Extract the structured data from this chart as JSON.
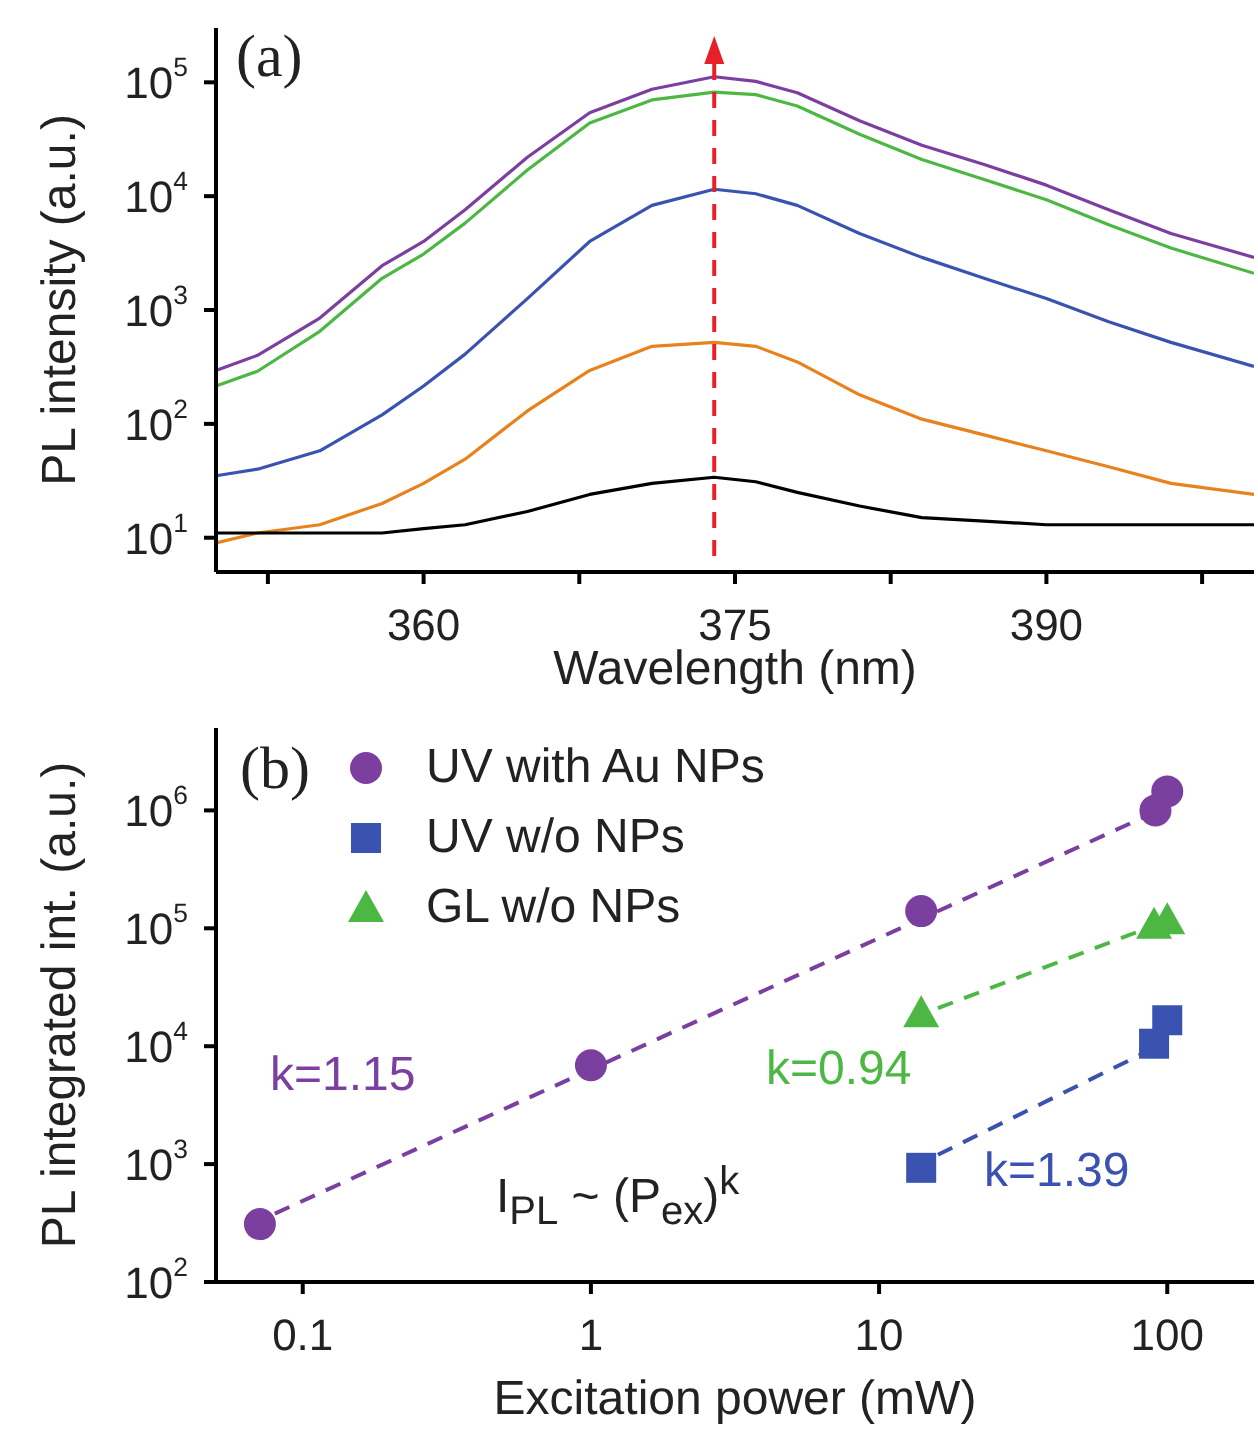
{
  "chart_data": [
    {
      "type": "line",
      "xlabel": "Wavelength (nm)",
      "ylabel": "PL intensity (a.u.)",
      "log": "y",
      "grid": false,
      "legend": false,
      "marker": "none",
      "line_style": "solid",
      "x": [
        350,
        352,
        355,
        358,
        360,
        362,
        365,
        368,
        371,
        374,
        376,
        378,
        381,
        384,
        387,
        390,
        393,
        396,
        400
      ],
      "xlim": [
        350,
        400
      ],
      "xticks": [
        {
          "value": 352.5,
          "label": null
        },
        360,
        {
          "value": 367.5,
          "label": null
        },
        375,
        {
          "value": 382.5,
          "label": null
        },
        390,
        {
          "value": 397.5,
          "label": null
        }
      ],
      "ylim": [
        5,
        300000
      ],
      "yticks": [
        {
          "value": 10,
          "label": "10$^{1}$"
        },
        {
          "value": 100,
          "label": "10$^{2}$"
        },
        {
          "value": 1000,
          "label": "10$^{3}$"
        },
        {
          "value": 10000,
          "label": "10$^{4}$"
        },
        {
          "value": 100000,
          "label": "10$^{5}$"
        }
      ],
      "series": [
        {
          "color": "#7b3fa0",
          "values": [
            295,
            400,
            850,
            2450,
            4000,
            7600,
            22000,
            54000,
            87000,
            112000,
            102000,
            81000,
            46000,
            28000,
            19000,
            12500,
            7600,
            4700,
            2900
          ]
        },
        {
          "color": "#4cb843",
          "values": [
            215,
            290,
            650,
            1900,
            3100,
            5800,
            17000,
            44000,
            70000,
            82000,
            78000,
            62000,
            35000,
            21000,
            14000,
            9300,
            5600,
            3500,
            2100
          ]
        },
        {
          "color": "#3a52b0",
          "values": [
            35,
            40,
            58,
            120,
            215,
            410,
            1260,
            4000,
            8300,
            11500,
            10500,
            8300,
            4700,
            2900,
            1900,
            1260,
            790,
            520,
            320
          ]
        },
        {
          "color": "#e8821e",
          "values": [
            9,
            11,
            13,
            20,
            30,
            49,
            130,
            295,
            480,
            520,
            480,
            350,
            180,
            110,
            80,
            58,
            42,
            30,
            24
          ]
        },
        {
          "color": "#000000",
          "values": [
            11,
            11,
            11,
            11,
            12,
            13,
            17,
            24,
            30,
            34,
            31,
            25,
            19,
            15,
            14,
            13,
            13,
            13,
            13
          ]
        }
      ],
      "ref_lines": [
        {
          "axis": "x",
          "value": 374,
          "color": "#e8202a",
          "line_style": "dashed"
        }
      ],
      "annotations": [
        "(a)"
      ]
    },
    {
      "type": "scatter",
      "xlabel": "Excitation power (mW)",
      "ylabel": "PL integrated int. (a.u.)",
      "log": "xy",
      "grid": false,
      "legend": "top left",
      "xlim": [
        0.05,
        200
      ],
      "xticks": [
        0.1,
        1,
        10,
        100
      ],
      "ylim": [
        100,
        5000000
      ],
      "yticks": [
        {
          "value": 100,
          "label": "10$^{2}$"
        },
        {
          "value": 1000,
          "label": "10$^{3}$"
        },
        {
          "value": 10000,
          "label": "10$^{4}$"
        },
        {
          "value": 100000,
          "label": "10$^{5}$"
        },
        {
          "value": 1000000,
          "label": "10$^{6}$"
        }
      ],
      "series": [
        {
          "name": "UV with Au NPs",
          "color": "#7b3fa0",
          "marker": "circle",
          "x": [
            0.071,
            1,
            14,
            91,
            100
          ],
          "values": [
            310,
            6900,
            140000,
            1000000,
            1450000
          ]
        },
        {
          "name": "UV w/o NPs",
          "color": "#3a52b0",
          "marker": "square",
          "x": [
            14,
            90,
            100
          ],
          "values": [
            930,
            10500,
            16600
          ]
        },
        {
          "name": "GL w/o NPs",
          "color": "#4cb843",
          "marker": "triangle",
          "x": [
            14,
            90,
            100
          ],
          "values": [
            19000,
            107000,
            117000
          ]
        },
        {
          "type": "line",
          "color": "#7b3fa0",
          "line_style": "dashed",
          "marker": "none",
          "x": [
            0.08,
            85
          ],
          "values": [
            380,
            900000
          ]
        },
        {
          "type": "line",
          "color": "#4cb843",
          "line_style": "dashed",
          "marker": "none",
          "x": [
            16,
            85
          ],
          "values": [
            21000,
            100000
          ]
        },
        {
          "type": "line",
          "color": "#3a52b0",
          "line_style": "dashed",
          "marker": "none",
          "x": [
            16,
            85
          ],
          "values": [
            1200,
            9000
          ]
        }
      ],
      "annotations": [
        "(b)",
        "k=1.15",
        "k=0.94",
        "k=1.39",
        "I$_{PL}$ ~ (P$_{ex}$)$^{k}$"
      ]
    }
  ]
}
